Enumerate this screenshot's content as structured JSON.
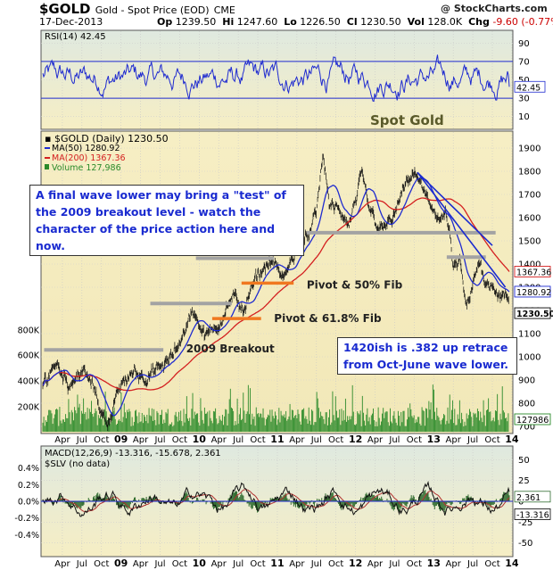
{
  "header": {
    "ticker": "$GOLD",
    "name": "Gold - Spot Price (EOD)",
    "exchange": "CME",
    "credit": "@ StockCharts.com",
    "date": "17-Dec-2013",
    "open_label": "Op",
    "open": "1239.50",
    "high_label": "Hi",
    "high": "1247.60",
    "low_label": "Lo",
    "low": "1226.50",
    "close_label": "Cl",
    "close": "1230.50",
    "vol_label": "Vol",
    "volume": "128.0K",
    "chg_label": "Chg",
    "change": "-9.60 (-0.77%)",
    "chg_arrow": "▼"
  },
  "annotations": {
    "wave_note": "A final wave lower may bring a \"test\" of the 2009 breakout level - watch the character of the price action here and now.",
    "retrace_note": "1420ish is .382 up retrace from Oct-June wave lower.",
    "spot_gold": "Spot Gold",
    "pivot50": "Pivot & 50% Fib",
    "pivot618": "Pivot & 61.8% Fib",
    "breakout": "2009 Breakout"
  },
  "colors": {
    "price": "#111111",
    "ma50": "#1f2bd0",
    "ma200": "#d42020",
    "volume": "#2a8a2a",
    "hline_gray": "#a3a3a3",
    "hline_orange": "#f07820",
    "trendline": "#1a2bd0",
    "panel_bg_top": "#dfe9e0",
    "panel_bg_bottom": "#f6eec4",
    "annotation_text": "#1a2bd0",
    "change_negative": "#cc0000"
  },
  "chart_data": [
    {
      "type": "line",
      "panel": "rsi",
      "legend": "RSI(14) 42.45",
      "y_ticks": [
        90,
        70,
        50,
        30,
        10
      ],
      "overbought": 70,
      "oversold": 30,
      "last_value": "42.45",
      "ylim": [
        0,
        100
      ]
    },
    {
      "type": "line",
      "panel": "price",
      "legend": [
        "$GOLD (Daily) 1230.50",
        "MA(50) 1280.92",
        "MA(200) 1367.36",
        "Volume 127,986"
      ],
      "ylim": [
        700,
        1950
      ],
      "y_ticks": [
        1900,
        1800,
        1700,
        1600,
        1500,
        1400,
        1300,
        1200,
        1100,
        1000,
        900,
        800,
        700
      ],
      "volume_ticks": [
        "800K",
        "600K",
        "400K",
        "200K"
      ],
      "value_tags": [
        {
          "label": "1367.36",
          "value": 1367.36,
          "series": "MA(200)"
        },
        {
          "label": "1280.92",
          "value": 1280.92,
          "series": "MA(50)"
        },
        {
          "label": "1230.50",
          "value": 1230.5,
          "series": "$GOLD"
        },
        {
          "label": "127986",
          "series": "Volume"
        }
      ],
      "series": [
        {
          "name": "$GOLD",
          "x": [
            "2008-01",
            "2008-03",
            "2008-05",
            "2008-07",
            "2008-09",
            "2008-10",
            "2008-11",
            "2009-01",
            "2009-03",
            "2009-05",
            "2009-07",
            "2009-09",
            "2009-12",
            "2010-02",
            "2010-04",
            "2010-06",
            "2010-08",
            "2010-10",
            "2010-12",
            "2011-02",
            "2011-04",
            "2011-06",
            "2011-07",
            "2011-08",
            "2011-09",
            "2011-10",
            "2011-12",
            "2012-02",
            "2012-03",
            "2012-05",
            "2012-07",
            "2012-09",
            "2012-10",
            "2012-12",
            "2013-02",
            "2013-03",
            "2013-04",
            "2013-05",
            "2013-06",
            "2013-07",
            "2013-08",
            "2013-09",
            "2013-10",
            "2013-11",
            "2013-12"
          ],
          "values": [
            880,
            980,
            880,
            950,
            850,
            760,
            720,
            880,
            940,
            910,
            950,
            1000,
            1200,
            1080,
            1150,
            1250,
            1210,
            1350,
            1420,
            1330,
            1480,
            1530,
            1620,
            1880,
            1650,
            1640,
            1560,
            1780,
            1650,
            1540,
            1610,
            1760,
            1790,
            1680,
            1590,
            1600,
            1390,
            1400,
            1200,
            1300,
            1410,
            1330,
            1320,
            1270,
            1230
          ]
        },
        {
          "name": "MA(50)",
          "last": 1280.92
        },
        {
          "name": "MA(200)",
          "last": 1367.36
        }
      ],
      "levels": [
        {
          "label": "2009 Breakout",
          "value": 1000
        },
        {
          "label": "Pivot & 61.8% Fib",
          "value": 1165
        },
        {
          "label": "Pivot & 50% Fib",
          "value": 1310
        }
      ],
      "annotations": [
        "Spot Gold",
        "Pivot & 50% Fib",
        "Pivot & 61.8% Fib",
        "2009 Breakout"
      ]
    },
    {
      "type": "line",
      "panel": "macd",
      "legend": [
        "MACD(12,26,9) -13.316, -15.678, 2.361",
        "$SLV (no data)"
      ],
      "left_ticks": [
        "0.4%",
        "0.2%",
        "0.0%",
        "-0.2%",
        "-0.4%"
      ],
      "right_ticks": [
        50,
        25,
        0,
        -25,
        -50
      ],
      "ylim": [
        -60,
        60
      ],
      "value_tags": [
        "2.361",
        "-13.316"
      ]
    }
  ],
  "x_axis": {
    "labels": [
      "Apr",
      "Jul",
      "Oct",
      "09",
      "Apr",
      "Jul",
      "Oct",
      "10",
      "Apr",
      "Jul",
      "Oct",
      "11",
      "Apr",
      "Jul",
      "Oct",
      "12",
      "Apr",
      "Jul",
      "Oct",
      "13",
      "Apr",
      "Jul",
      "Oct",
      "14"
    ],
    "year_labels": [
      "09",
      "10",
      "11",
      "12",
      "13",
      "14"
    ]
  }
}
